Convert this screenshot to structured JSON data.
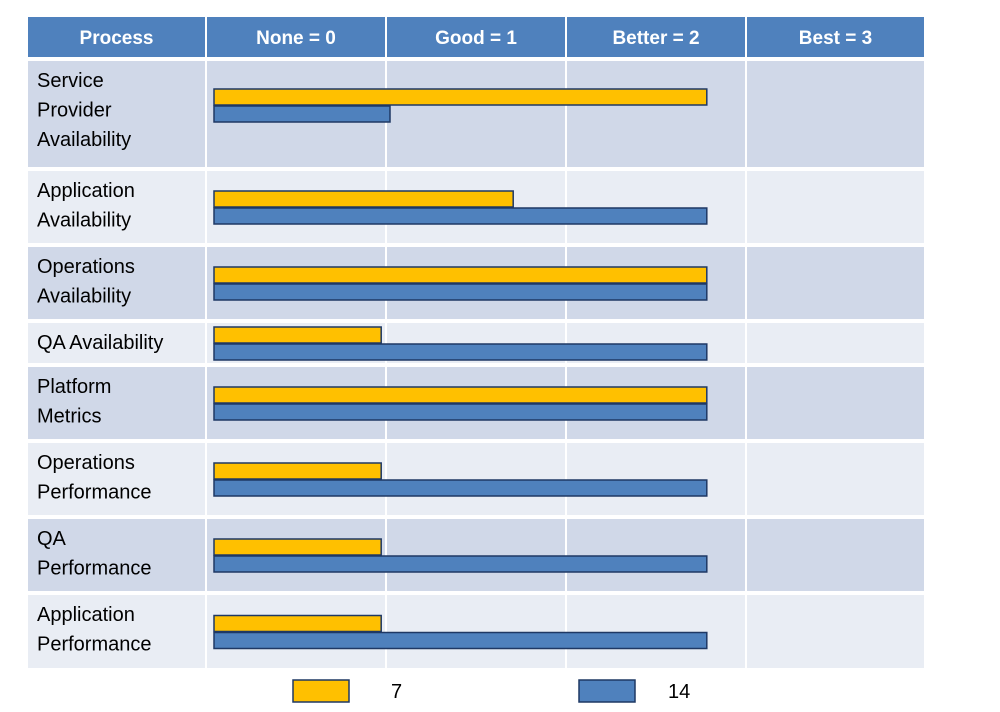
{
  "chart_data": {
    "type": "bar",
    "orientation": "horizontal",
    "header": {
      "process_label": "Process",
      "levels": [
        "None = 0",
        "Good = 1",
        "Better = 2",
        "Best = 3"
      ]
    },
    "categories": [
      [
        "Service",
        "Provider",
        "Availability"
      ],
      [
        "Application",
        "Availability"
      ],
      [
        "Operations",
        "Availability"
      ],
      [
        "QA Availability"
      ],
      [
        "Platform",
        "Metrics"
      ],
      [
        "Operations",
        "Performance"
      ],
      [
        "QA",
        "Performance"
      ],
      [
        "Application",
        "Performance"
      ]
    ],
    "series": [
      {
        "name": "7",
        "color": "#FFC000",
        "values": [
          2.8,
          1.7,
          2.8,
          0.95,
          2.8,
          0.95,
          0.95,
          0.95
        ]
      },
      {
        "name": "14",
        "color": "#4F81BD",
        "values": [
          1.0,
          2.8,
          2.8,
          2.8,
          2.8,
          2.8,
          2.8,
          2.8
        ]
      }
    ],
    "xlim": [
      0,
      3
    ],
    "legend_position": "bottom",
    "colors": {
      "header_bg": "#4F81BD",
      "row_dark": "#D0D8E8",
      "row_light": "#E9EDF4",
      "bar_border": "#1F3864",
      "header_text": "#FFFFFF"
    }
  }
}
